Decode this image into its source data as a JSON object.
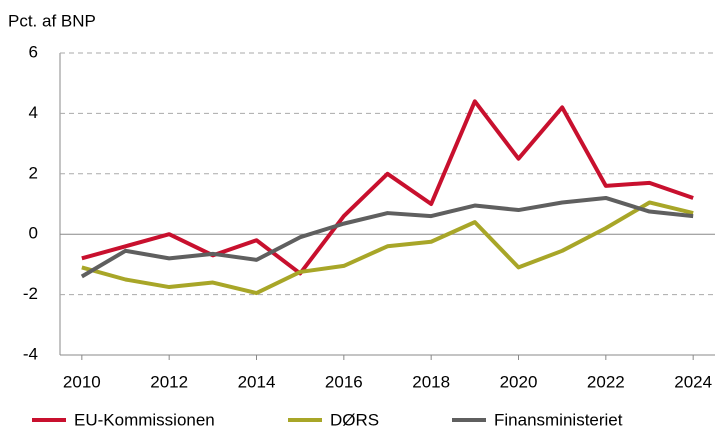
{
  "chart_data": {
    "type": "line",
    "y_label": "Pct. af BNP",
    "x": [
      2010,
      2011,
      2012,
      2013,
      2014,
      2015,
      2016,
      2017,
      2018,
      2019,
      2020,
      2021,
      2022,
      2023,
      2024
    ],
    "series": [
      {
        "name": "EU-Kommissionen",
        "color": "#c8102e",
        "values": [
          -0.8,
          -0.4,
          0.0,
          -0.7,
          -0.2,
          -1.3,
          0.6,
          2.0,
          1.0,
          4.4,
          2.5,
          4.2,
          1.6,
          1.7,
          1.2
        ]
      },
      {
        "name": "DØRS",
        "color": "#a8a628",
        "values": [
          -1.1,
          -1.5,
          -1.75,
          -1.6,
          -1.95,
          -1.25,
          -1.05,
          -0.4,
          -0.25,
          0.4,
          -1.1,
          -0.55,
          0.2,
          1.05,
          0.7
        ]
      },
      {
        "name": "Finansministeriet",
        "color": "#5f5f5f",
        "values": [
          -1.4,
          -0.55,
          -0.8,
          -0.65,
          -0.85,
          -0.1,
          0.35,
          0.7,
          0.6,
          0.95,
          0.8,
          1.05,
          1.2,
          0.75,
          0.6
        ]
      }
    ],
    "xlim": [
      2009.5,
      2024.5
    ],
    "xticks": [
      2010,
      2012,
      2014,
      2016,
      2018,
      2020,
      2022,
      2024
    ],
    "ylim": [
      -4,
      6
    ],
    "yticks": [
      -4,
      -2,
      0,
      2,
      4,
      6
    ],
    "grid": true,
    "legend": "bottom"
  }
}
